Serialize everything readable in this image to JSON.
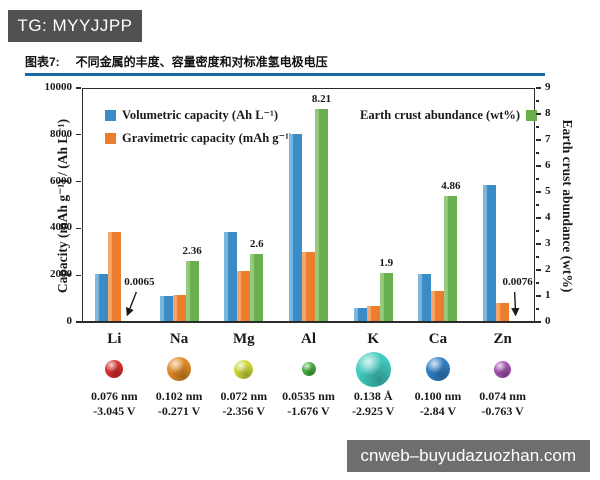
{
  "badge": {
    "text": "TG: MYYJJPP"
  },
  "header": {
    "figure_label": "图表7:",
    "title": "不同金属的丰度、容量密度和对标准氢电极电压"
  },
  "chart_data": {
    "type": "bar",
    "categories": [
      "Li",
      "Na",
      "Mg",
      "Al",
      "K",
      "Ca",
      "Zn"
    ],
    "series": [
      {
        "key": "volumetric-capacity",
        "name": "Volumetric capacity (Ah L⁻¹)",
        "axis": "left",
        "color": "#3a8cc7",
        "color_light": "#7db8de",
        "values": [
          2060,
          1130,
          3830,
          8040,
          590,
          2060,
          5850
        ]
      },
      {
        "key": "gravimetric-capacity",
        "name": "Gravimetric capacity (mAh g⁻¹)",
        "axis": "left",
        "color": "#ec7d2f",
        "color_light": "#f4a96b",
        "values": [
          3860,
          1170,
          2200,
          2980,
          690,
          1340,
          820
        ]
      },
      {
        "key": "earth-crust-abundance",
        "name": "Earth crust abundance (wt%)",
        "axis": "right",
        "color": "#68b04e",
        "color_light": "#97ca7c",
        "values": [
          0.0065,
          2.36,
          2.6,
          8.21,
          1.9,
          4.86,
          0.0076
        ],
        "value_labels": [
          "0.0065",
          "2.36",
          "2.6",
          "8.21",
          "1.9",
          "4.86",
          "0.0076"
        ],
        "annotated": [
          true,
          false,
          false,
          false,
          false,
          false,
          true
        ]
      }
    ],
    "left_axis": {
      "label": "Capacity (mAh g⁻¹) / (Ah L⁻¹)",
      "min": 0,
      "max": 10000,
      "ticks": [
        "0",
        "2000",
        "4000",
        "6000",
        "8000",
        "10000"
      ]
    },
    "right_axis": {
      "label": "Earth crust abundance (wt%)",
      "min": 0,
      "max": 9,
      "ticks": [
        "0",
        "1",
        "2",
        "3",
        "4",
        "5",
        "6",
        "7",
        "8",
        "9"
      ]
    },
    "grid": false,
    "legend_position": "top-inside"
  },
  "elements": [
    {
      "symbol": "Li",
      "radius": "0.076 nm",
      "voltage": "-3.045 V",
      "color": "#d42f2f",
      "diameter": 18
    },
    {
      "symbol": "Na",
      "radius": "0.102 nm",
      "voltage": "-0.271 V",
      "color": "#df8a27",
      "diameter": 24
    },
    {
      "symbol": "Mg",
      "radius": "0.072 nm",
      "voltage": "-2.356 V",
      "color": "#ccd639",
      "diameter": 19
    },
    {
      "symbol": "Al",
      "radius": "0.0535 nm",
      "voltage": "-1.676 V",
      "color": "#46ad42",
      "diameter": 14
    },
    {
      "symbol": "K",
      "radius": "0.138 Å",
      "voltage": "-2.925 V",
      "color": "#40c9bd",
      "diameter": 35
    },
    {
      "symbol": "Ca",
      "radius": "0.100 nm",
      "voltage": "-2.84 V",
      "color": "#2f7fc4",
      "diameter": 24
    },
    {
      "symbol": "Zn",
      "radius": "0.074 nm",
      "voltage": "-0.763 V",
      "color": "#a351ad",
      "diameter": 17
    }
  ],
  "watermark": {
    "text": "cnweb–buyudazuozhan.com"
  }
}
